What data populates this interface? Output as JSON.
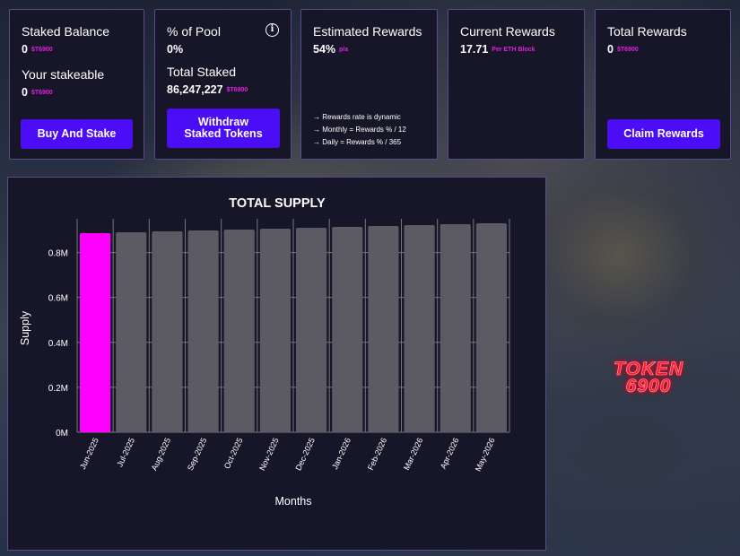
{
  "cards": {
    "staked": {
      "title": "Staked Balance",
      "value": "0",
      "unit": "$T6900",
      "sub_title": "Your stakeable",
      "sub_value": "0",
      "sub_unit": "$T6900",
      "button": "Buy And Stake"
    },
    "pool": {
      "title": "% of Pool",
      "value": "0%",
      "sub_title": "Total Staked",
      "sub_value": "86,247,227",
      "sub_unit": "$T6900",
      "button_line1": "Withdraw",
      "button_line2": "Staked Tokens",
      "icon": "info-icon"
    },
    "estimated": {
      "title": "Estimated Rewards",
      "value": "54%",
      "unit": "p/a",
      "notes": [
        "→ Rewards rate is dynamic",
        "→ Monthly = Rewards % / 12",
        "→ Daily = Rewards % / 365"
      ]
    },
    "current": {
      "title": "Current Rewards",
      "value": "17.71",
      "unit": "Per ETH Block"
    },
    "total": {
      "title": "Total Rewards",
      "value": "0",
      "unit": "$T6900",
      "button": "Claim Rewards"
    }
  },
  "logo": {
    "line1": "TOKEN",
    "line2": "6900"
  },
  "colors": {
    "accent_button": "#4b0df5",
    "highlight_bar": "#ff00ff",
    "bar": "#5c5b63",
    "unit_text": "#e020e0"
  },
  "chart_data": {
    "type": "bar",
    "title": "TOTAL SUPPLY",
    "xlabel": "Months",
    "ylabel": "Supply",
    "categories": [
      "Jun-2025",
      "Jul-2025",
      "Aug-2025",
      "Sep-2025",
      "Oct-2025",
      "Nov-2025",
      "Dec-2025",
      "Jan-2026",
      "Feb-2026",
      "Mar-2026",
      "Apr-2026",
      "May-2026"
    ],
    "values": [
      0.886,
      0.89,
      0.894,
      0.898,
      0.902,
      0.906,
      0.91,
      0.914,
      0.918,
      0.922,
      0.926,
      0.93
    ],
    "value_unit": "M",
    "highlight_index": 0,
    "ylim": [
      0,
      0.95
    ],
    "yticks": [
      0,
      0.2,
      0.4,
      0.6,
      0.8
    ],
    "ytick_labels": [
      "0M",
      "0.2M",
      "0.4M",
      "0.6M",
      "0.8M"
    ],
    "grid": true
  }
}
